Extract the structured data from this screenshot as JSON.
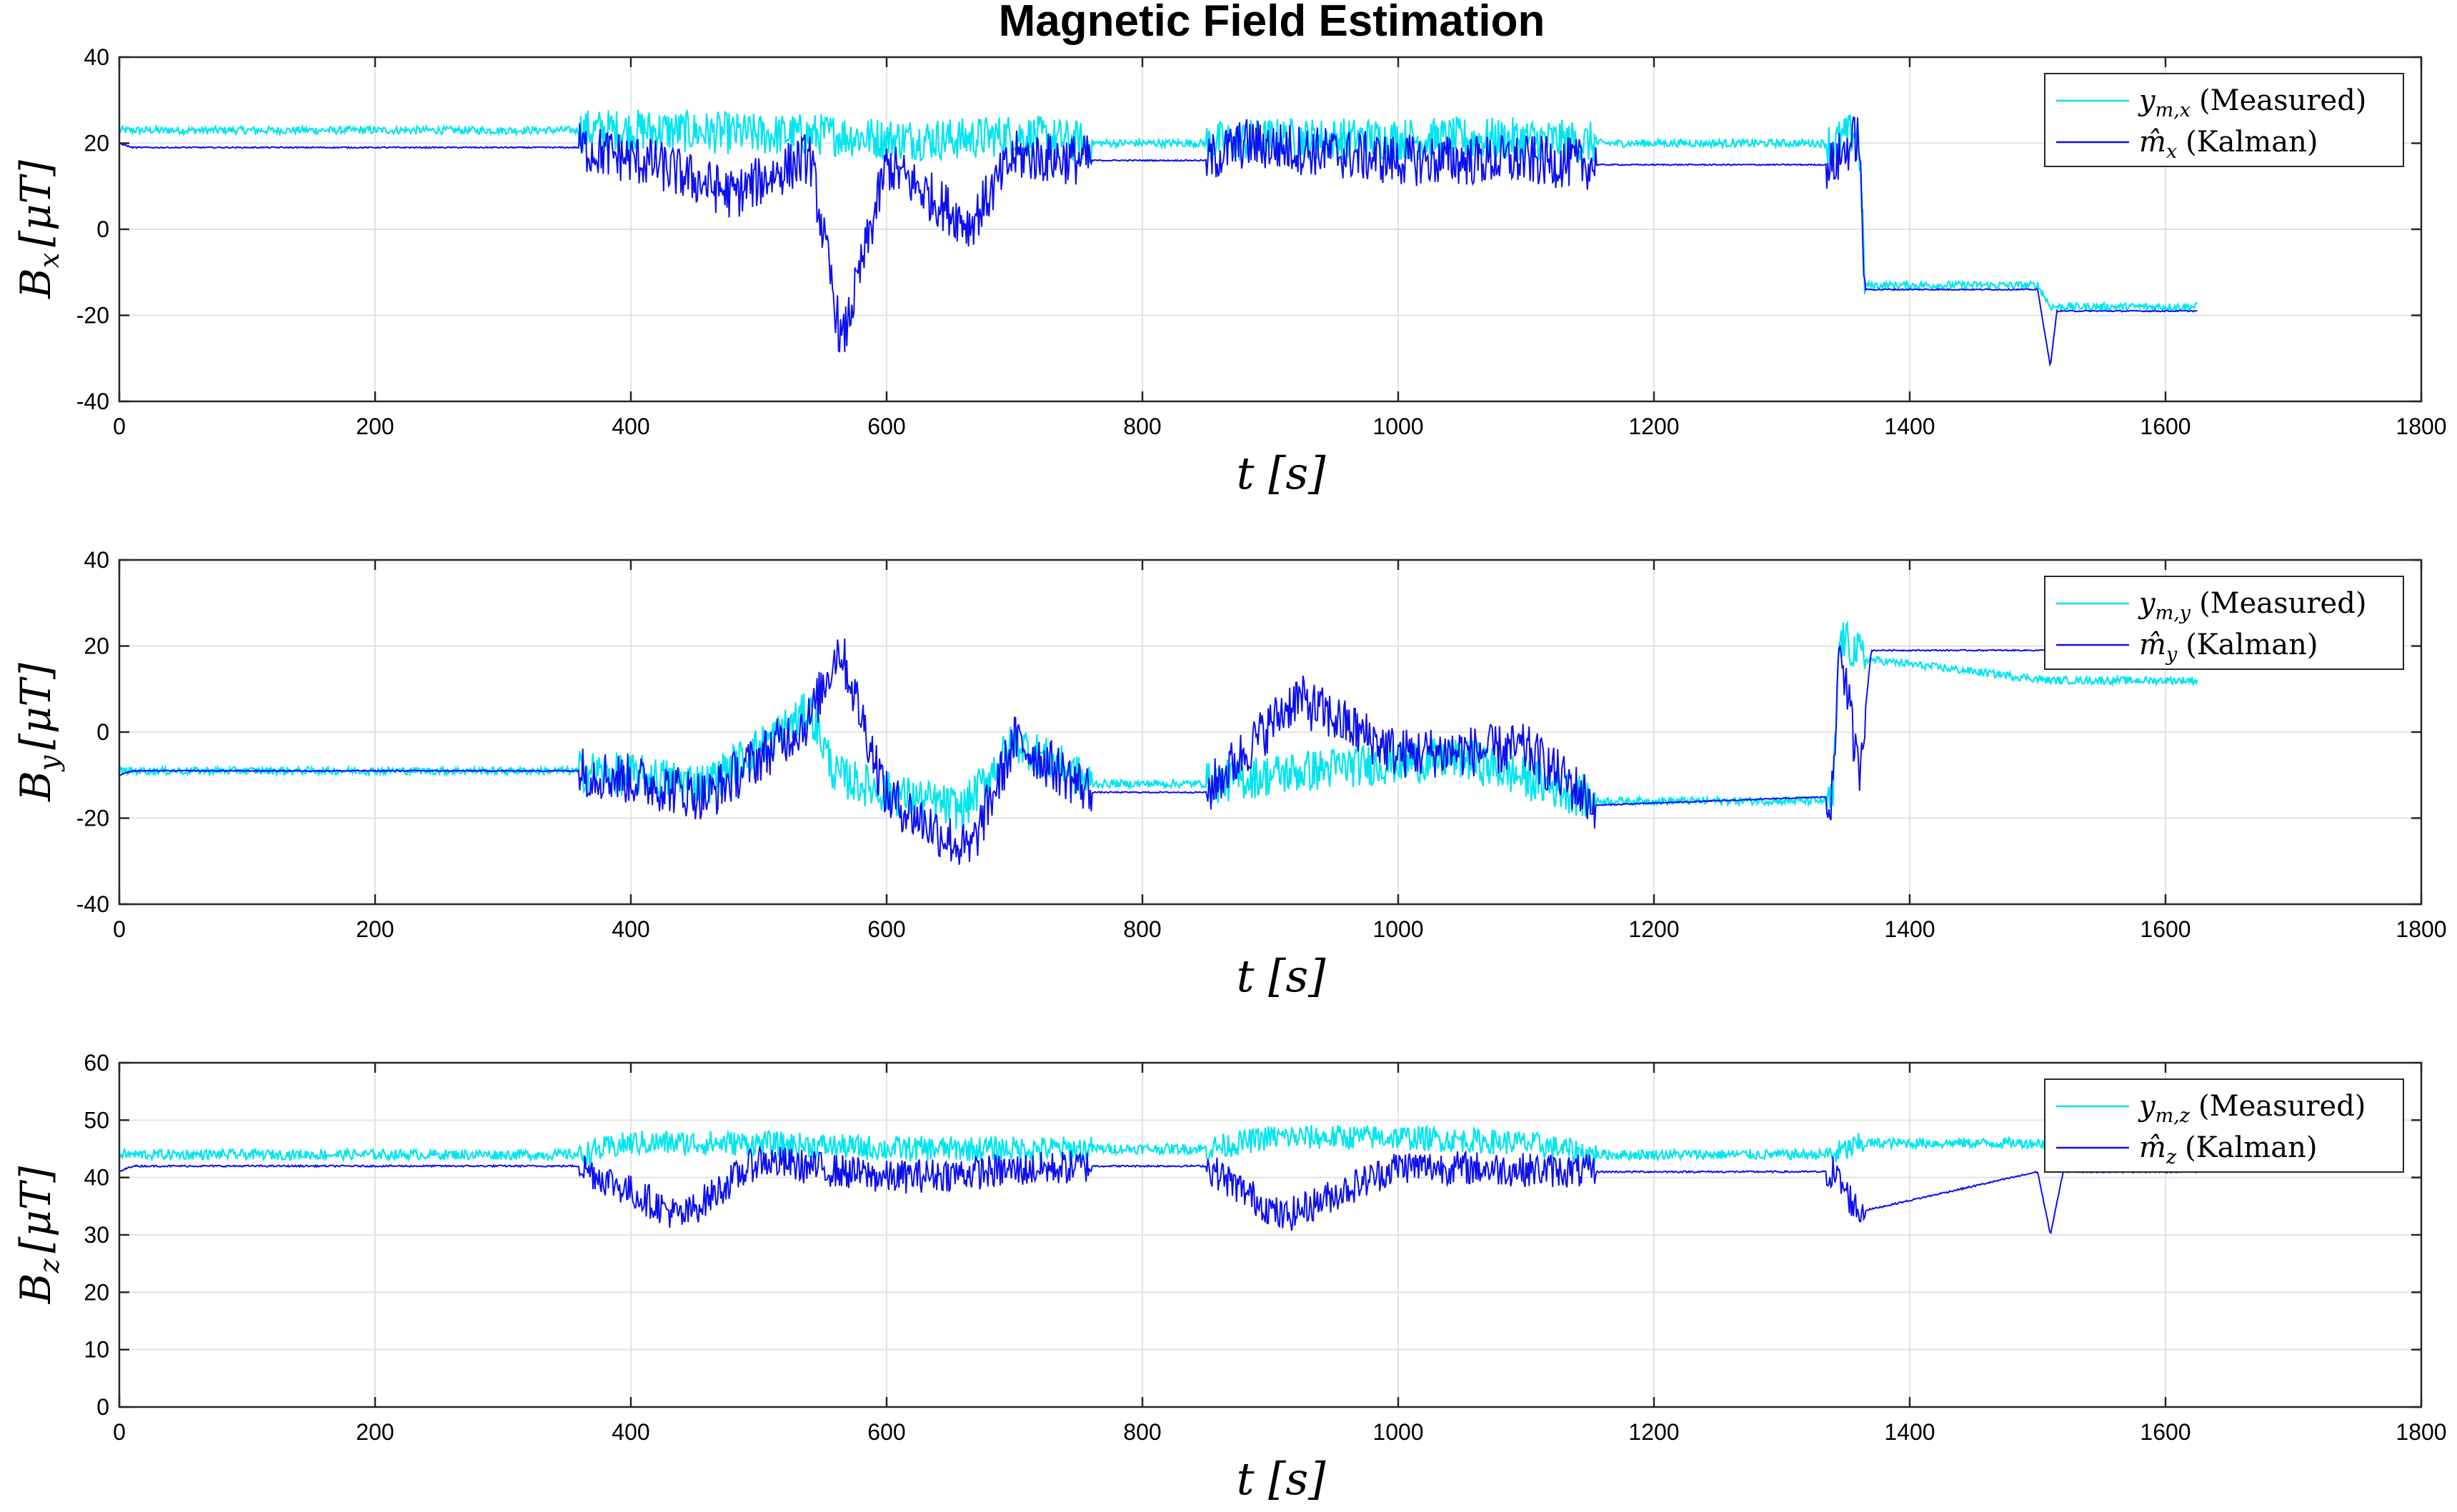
{
  "title": "Magnetic Field Estimation",
  "colors": {
    "measured": "#00e5ee",
    "kalman": "#0d10ee"
  },
  "chart_data": [
    {
      "type": "line",
      "xlabel": "t [s]",
      "ylabel": "Bx [μT]",
      "xlim": [
        0,
        1800
      ],
      "ylim": [
        -40,
        40
      ],
      "xticks": [
        0,
        200,
        400,
        600,
        800,
        1000,
        1200,
        1400,
        1600,
        1800
      ],
      "yticks": [
        -40,
        -20,
        0,
        20,
        40
      ],
      "grid": true,
      "legend_position": "top-right",
      "series": [
        {
          "name": "y_{m,x} (Measured)",
          "color": "#00e5ee",
          "x": [
            0,
            360,
            420,
            500,
            560,
            600,
            660,
            700,
            760,
            850,
            900,
            1000,
            1100,
            1155,
            1340,
            1360,
            1365,
            1500,
            1510,
            1625
          ],
          "y": [
            23,
            23,
            23,
            22,
            22,
            21,
            21,
            22,
            20,
            20,
            21,
            21,
            21,
            20,
            20,
            23,
            -13,
            -13,
            -18,
            -18
          ]
        },
        {
          "name": "m̂_x (Kalman)",
          "color": "#0d10ee",
          "x": [
            0,
            10,
            360,
            420,
            480,
            540,
            565,
            600,
            665,
            700,
            760,
            850,
            880,
            1000,
            1100,
            1155,
            1340,
            1360,
            1365,
            1500,
            1510,
            1515,
            1625
          ],
          "y": [
            20,
            19,
            19,
            15,
            8,
            17,
            -27,
            15,
            1,
            17,
            16,
            16,
            20,
            16,
            16,
            15,
            15,
            22,
            -14,
            -14,
            -32,
            -19,
            -19
          ]
        }
      ]
    },
    {
      "type": "line",
      "xlabel": "t [s]",
      "ylabel": "By [μT]",
      "xlim": [
        0,
        1800
      ],
      "ylim": [
        -40,
        40
      ],
      "xticks": [
        0,
        200,
        400,
        600,
        800,
        1000,
        1200,
        1400,
        1600,
        1800
      ],
      "yticks": [
        -40,
        -20,
        0,
        20,
        40
      ],
      "grid": true,
      "legend_position": "top-right",
      "series": [
        {
          "name": "y_{m,y} (Measured)",
          "color": "#00e5ee",
          "x": [
            0,
            360,
            400,
            460,
            540,
            560,
            600,
            660,
            700,
            760,
            850,
            900,
            960,
            1050,
            1155,
            1340,
            1345,
            1365,
            1510,
            1625
          ],
          "y": [
            -9,
            -9,
            -10,
            -12,
            5,
            -10,
            -14,
            -18,
            -2,
            -12,
            -12,
            -10,
            -8,
            -6,
            -16,
            -16,
            22,
            17,
            12,
            12
          ]
        },
        {
          "name": "m̂_y (Kalman)",
          "color": "#0d10ee",
          "x": [
            0,
            10,
            360,
            400,
            460,
            540,
            563,
            600,
            665,
            700,
            760,
            850,
            920,
            1000,
            1100,
            1155,
            1340,
            1345,
            1360,
            1370,
            1500,
            1625
          ],
          "y": [
            -10,
            -9,
            -9,
            -11,
            -15,
            3,
            20,
            -15,
            -28,
            -2,
            -14,
            -14,
            8,
            -5,
            -4,
            -17,
            -15,
            22,
            -10,
            19,
            19,
            19
          ]
        }
      ]
    },
    {
      "type": "line",
      "xlabel": "t [s]",
      "ylabel": "Bz [μT]",
      "xlim": [
        0,
        1800
      ],
      "ylim": [
        0,
        60
      ],
      "xticks": [
        0,
        200,
        400,
        600,
        800,
        1000,
        1200,
        1400,
        1600,
        1800
      ],
      "yticks": [
        0,
        10,
        20,
        30,
        40,
        50,
        60
      ],
      "grid": true,
      "legend_position": "top-right",
      "series": [
        {
          "name": "y_{m,z} (Measured)",
          "color": "#00e5ee",
          "x": [
            0,
            360,
            400,
            500,
            600,
            700,
            760,
            850,
            900,
            1000,
            1100,
            1155,
            1340,
            1365,
            1510,
            1625
          ],
          "y": [
            44,
            44,
            46,
            46,
            45,
            45,
            45,
            45,
            47,
            47,
            46,
            44,
            44,
            46,
            46,
            46
          ]
        },
        {
          "name": "m̂_z (Kalman)",
          "color": "#0d10ee",
          "x": [
            0,
            10,
            360,
            440,
            500,
            600,
            760,
            850,
            910,
            1000,
            1155,
            1340,
            1360,
            1500,
            1510,
            1520,
            1625
          ],
          "y": [
            41,
            42,
            42,
            33,
            43,
            40,
            42,
            42,
            33,
            42,
            41,
            41,
            34,
            41,
            30,
            41,
            41
          ]
        }
      ]
    }
  ],
  "legends": [
    {
      "measured": "y",
      "measured_sub": "m,x",
      "measured_text": "(Measured)",
      "kalman": "m̂",
      "kalman_sub": "x",
      "kalman_text": "(Kalman)"
    },
    {
      "measured": "y",
      "measured_sub": "m,y",
      "measured_text": "(Measured)",
      "kalman": "m̂",
      "kalman_sub": "y",
      "kalman_text": "(Kalman)"
    },
    {
      "measured": "y",
      "measured_sub": "m,z",
      "measured_text": "(Measured)",
      "kalman": "m̂",
      "kalman_sub": "z",
      "kalman_text": "(Kalman)"
    }
  ],
  "axis_text": [
    {
      "ylabel_main": "B",
      "ylabel_sub": "x",
      "ylabel_unit": "[μT]",
      "xlabel": "t [s]"
    },
    {
      "ylabel_main": "B",
      "ylabel_sub": "y",
      "ylabel_unit": "[μT]",
      "xlabel": "t [s]"
    },
    {
      "ylabel_main": "B",
      "ylabel_sub": "z",
      "ylabel_unit": "[μT]",
      "xlabel": "t [s]"
    }
  ]
}
